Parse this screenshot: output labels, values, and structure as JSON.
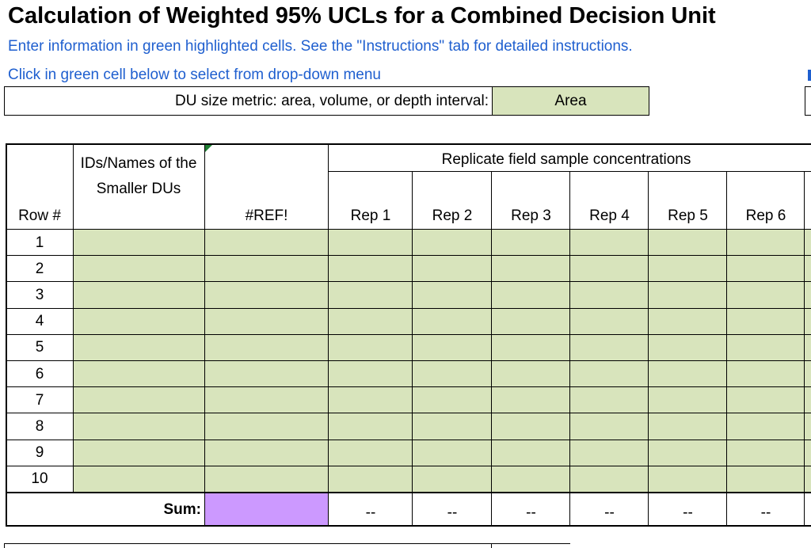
{
  "title": "Calculation of Weighted 95% UCLs for a Combined Decision Unit",
  "instructions": "Enter information in green highlighted cells.  See the \"Instructions\" tab for detailed instructions.",
  "dropdown_note": "Click in green cell below to select from drop-down menu",
  "metric": {
    "label": "DU size metric:  area, volume, or depth interval:",
    "value": "Area"
  },
  "table": {
    "col_row": "Row #",
    "col_ids": "IDs/Names of the Smaller DUs",
    "col_ref": "#REF!",
    "group_header": "Replicate field sample concentrations",
    "reps": [
      "Rep 1",
      "Rep 2",
      "Rep 3",
      "Rep 4",
      "Rep 5",
      "Rep 6"
    ],
    "rows": [
      "1",
      "2",
      "3",
      "4",
      "5",
      "6",
      "7",
      "8",
      "9",
      "10"
    ],
    "sum_label": "Sum:",
    "sum_values": [
      "--",
      "--",
      "--",
      "--",
      "--",
      "--"
    ]
  },
  "colors": {
    "green_cell": "#d8e4bc",
    "purple_cell": "#cc99ff",
    "note_text": "#1f5fcf"
  }
}
